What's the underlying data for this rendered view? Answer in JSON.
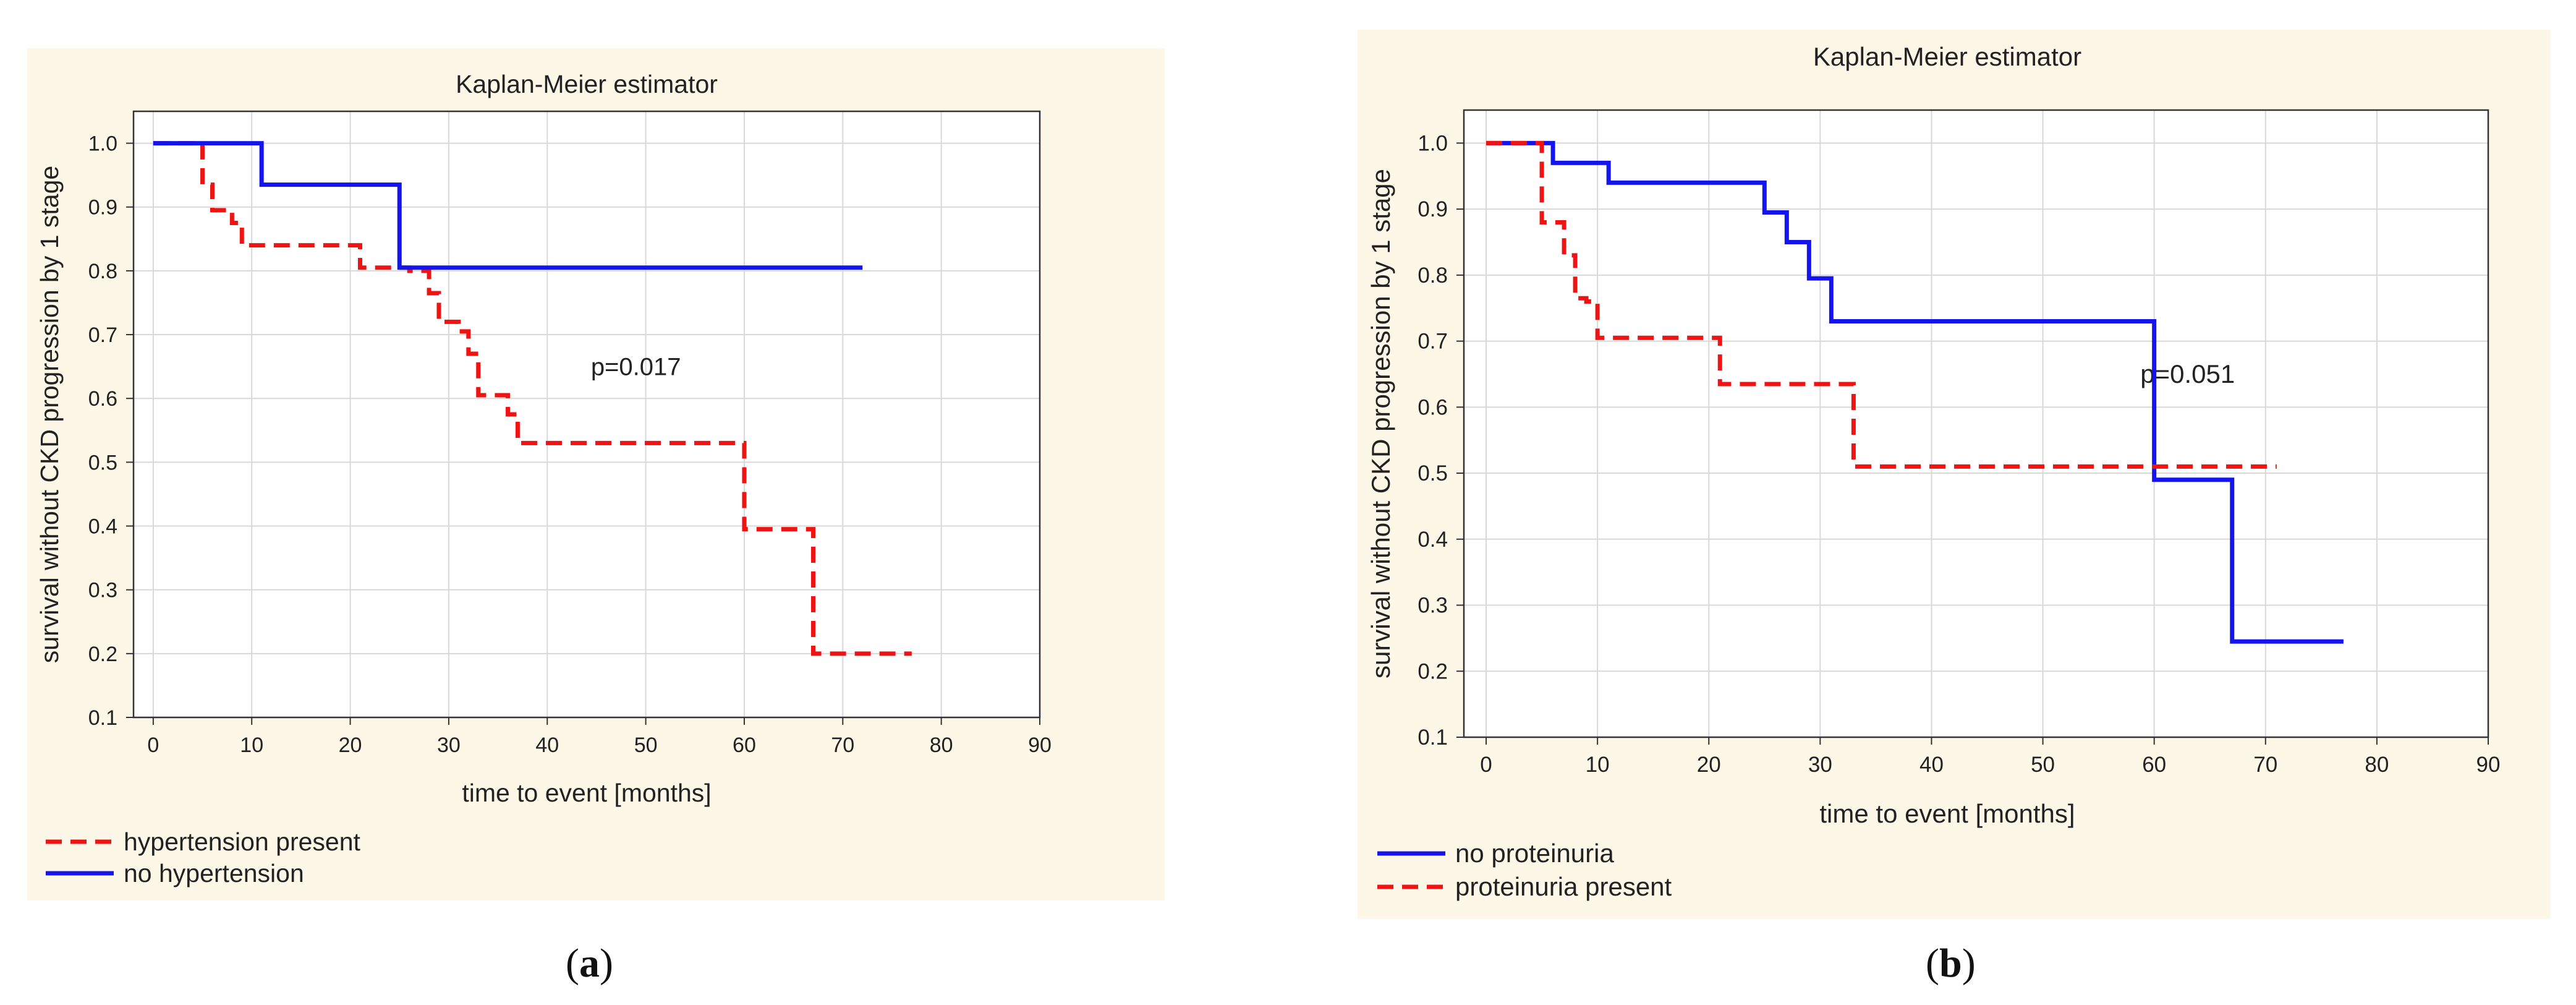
{
  "captions": {
    "a_open": "(",
    "a_letter": "a",
    "a_close": ")",
    "b_open": "(",
    "b_letter": "b",
    "b_close": ")"
  },
  "colors": {
    "blue": "#1414ee",
    "red": "#ee1414",
    "panel_bg": "#fdf7e7",
    "grid": "#d8d8d8"
  },
  "chart_data": [
    {
      "type": "line",
      "step": true,
      "title": "Kaplan-Meier estimator",
      "xlabel": "time to event [months]",
      "ylabel": "survival without CKD progression by 1 stage",
      "xlim": [
        -2,
        90
      ],
      "ylim": [
        0.1,
        1.05
      ],
      "xticks": [
        0,
        10,
        20,
        30,
        40,
        50,
        60,
        70,
        80,
        90
      ],
      "yticks": [
        0.1,
        0.2,
        0.3,
        0.4,
        0.5,
        0.6,
        0.7,
        0.8,
        0.9,
        1.0
      ],
      "ytick_labels": [
        "0.1",
        "0.2",
        "0.3",
        "0.4",
        "0.5",
        "0.6",
        "0.7",
        "0.8",
        "0.9",
        "1.0"
      ],
      "grid": true,
      "annotation": "p=0.017",
      "annotation_pos": [
        49,
        0.65
      ],
      "legend_position": "bottom-left",
      "series": [
        {
          "name": "hypertension present",
          "color": "#ee1414",
          "dashed": true,
          "x": [
            0,
            5,
            6,
            8,
            9,
            21,
            26,
            28,
            29,
            31,
            32,
            33,
            36,
            37,
            60,
            67,
            77
          ],
          "y": [
            1.0,
            0.935,
            0.895,
            0.875,
            0.84,
            0.805,
            0.8,
            0.765,
            0.72,
            0.705,
            0.67,
            0.605,
            0.575,
            0.53,
            0.395,
            0.2,
            0.2
          ]
        },
        {
          "name": "no hypertension",
          "color": "#1414ee",
          "dashed": false,
          "x": [
            0,
            11,
            25,
            72
          ],
          "y": [
            1.0,
            0.935,
            0.805,
            0.805
          ]
        }
      ]
    },
    {
      "type": "line",
      "step": true,
      "title": "Kaplan-Meier estimator",
      "xlabel": "time to event [months]",
      "ylabel": "survival without CKD progression by 1 stage",
      "xlim": [
        -2,
        90
      ],
      "ylim": [
        0.1,
        1.05
      ],
      "xticks": [
        0,
        10,
        20,
        30,
        40,
        50,
        60,
        70,
        80,
        90
      ],
      "yticks": [
        0.1,
        0.2,
        0.3,
        0.4,
        0.5,
        0.6,
        0.7,
        0.8,
        0.9,
        1.0
      ],
      "ytick_labels": [
        "0.1",
        "0.2",
        "0.3",
        "0.4",
        "0.5",
        "0.6",
        "0.7",
        "0.8",
        "0.9",
        "1.0"
      ],
      "grid": true,
      "annotation": "p=0.051",
      "annotation_pos": [
        63,
        0.65
      ],
      "legend_position": "bottom-left",
      "series": [
        {
          "name": "no proteinuria",
          "color": "#1414ee",
          "dashed": false,
          "x": [
            0,
            6,
            11,
            25,
            27,
            28,
            29,
            31,
            60,
            67,
            77
          ],
          "y": [
            1.0,
            0.97,
            0.94,
            0.895,
            0.85,
            0.85,
            0.795,
            0.73,
            0.49,
            0.245,
            0.245
          ]
        },
        {
          "name": "proteinuria present",
          "color": "#ee1414",
          "dashed": true,
          "x": [
            0,
            5,
            6,
            7,
            8,
            9,
            10,
            21,
            33,
            71
          ],
          "y": [
            1.0,
            0.88,
            0.88,
            0.83,
            0.765,
            0.76,
            0.705,
            0.635,
            0.51,
            0.51
          ]
        }
      ]
    }
  ]
}
